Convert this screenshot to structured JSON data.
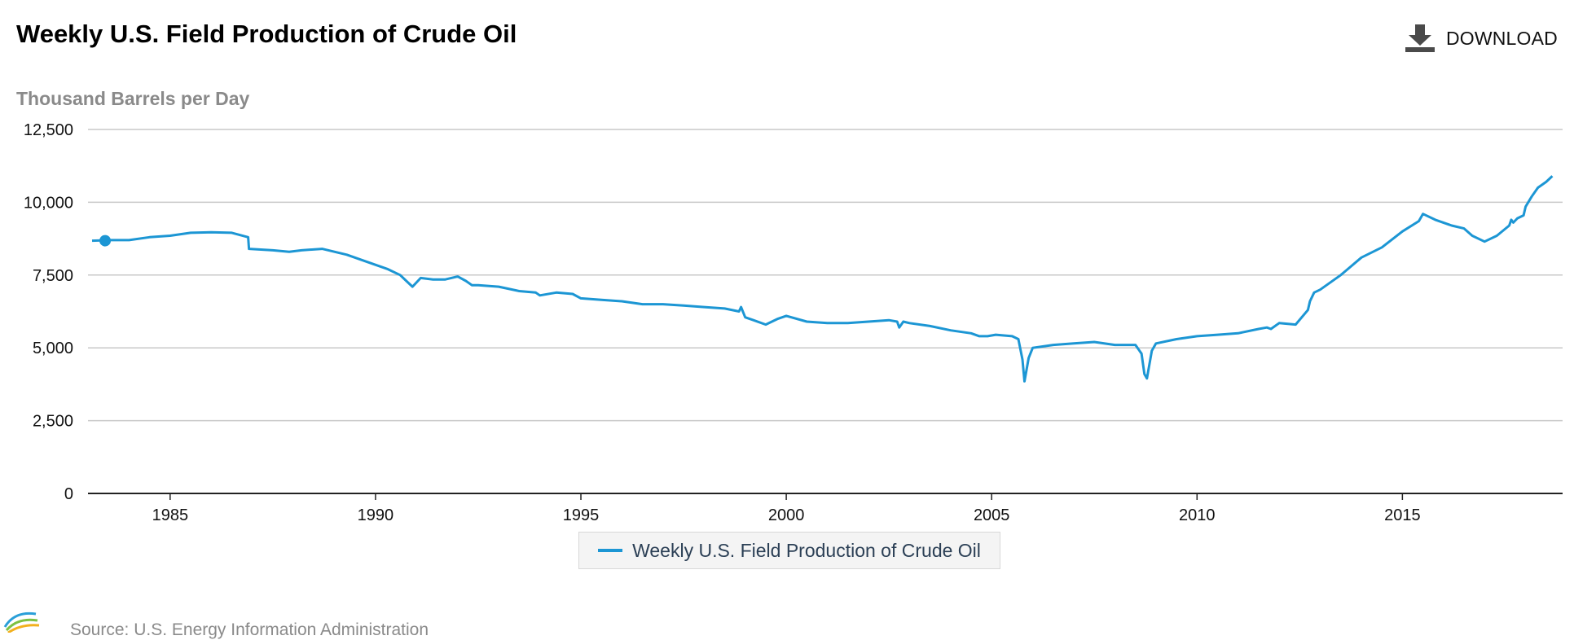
{
  "header": {
    "title": "Weekly U.S. Field Production of Crude Oil",
    "download_label": "DOWNLOAD",
    "download_icon": "download-icon"
  },
  "footer": {
    "source_text": "Source: U.S. Energy Information Administration",
    "logo_text": "eia"
  },
  "chart_data": {
    "type": "line",
    "title": "Weekly U.S. Field Production of Crude Oil",
    "ylabel": "Thousand Barrels per Day",
    "xlabel": "",
    "xlim": [
      1983.0,
      2018.9
    ],
    "ylim": [
      0,
      12500
    ],
    "yticks": [
      0,
      2500,
      5000,
      7500,
      10000,
      12500
    ],
    "ytick_labels": [
      "0",
      "2,500",
      "5,000",
      "7,500",
      "10,000",
      "12,500"
    ],
    "xticks": [
      1985,
      1990,
      1995,
      2000,
      2005,
      2010,
      2015
    ],
    "xtick_labels": [
      "1985",
      "1990",
      "1995",
      "2000",
      "2005",
      "2010",
      "2015"
    ],
    "grid": true,
    "legend": "bottom-center",
    "colors": {
      "series": "#1c96d4",
      "grid": "#c8c8c8",
      "axis": "#222222"
    },
    "series": [
      {
        "name": "Weekly U.S. Field Production of Crude Oil",
        "x": [
          1983.1,
          1983.5,
          1984.0,
          1984.5,
          1985.0,
          1985.5,
          1986.0,
          1986.5,
          1986.9,
          1986.92,
          1987.5,
          1987.9,
          1988.2,
          1988.7,
          1989.3,
          1989.8,
          1990.3,
          1990.6,
          1990.75,
          1990.9,
          1991.1,
          1991.4,
          1991.7,
          1992.0,
          1992.2,
          1992.35,
          1992.5,
          1993.0,
          1993.5,
          1993.9,
          1994.0,
          1994.4,
          1994.8,
          1995.0,
          1995.5,
          1996.0,
          1996.5,
          1997.0,
          1997.5,
          1998.0,
          1998.5,
          1998.85,
          1998.9,
          1999.0,
          1999.2,
          1999.5,
          1999.8,
          2000.0,
          2000.5,
          2001.0,
          2001.5,
          2002.0,
          2002.5,
          2002.7,
          2002.75,
          2002.85,
          2003.0,
          2003.5,
          2004.0,
          2004.5,
          2004.7,
          2004.8,
          2004.9,
          2005.1,
          2005.5,
          2005.65,
          2005.75,
          2005.8,
          2005.9,
          2006.0,
          2006.5,
          2007.0,
          2007.5,
          2008.0,
          2008.5,
          2008.65,
          2008.72,
          2008.78,
          2008.9,
          2009.0,
          2009.5,
          2010.0,
          2010.5,
          2011.0,
          2011.5,
          2011.7,
          2011.8,
          2012.0,
          2012.4,
          2012.7,
          2012.75,
          2012.85,
          2013.0,
          2013.5,
          2014.0,
          2014.5,
          2015.0,
          2015.4,
          2015.5,
          2015.8,
          2016.2,
          2016.5,
          2016.7,
          2017.0,
          2017.3,
          2017.6,
          2017.65,
          2017.7,
          2017.8,
          2017.95,
          2018.0,
          2018.15,
          2018.3,
          2018.5,
          2018.65
        ],
        "values": [
          8680,
          8700,
          8700,
          8800,
          8850,
          8950,
          8970,
          8950,
          8800,
          8400,
          8350,
          8300,
          8350,
          8400,
          8200,
          7950,
          7700,
          7500,
          7300,
          7100,
          7400,
          7350,
          7350,
          7450,
          7300,
          7150,
          7150,
          7100,
          6950,
          6900,
          6800,
          6900,
          6850,
          6700,
          6650,
          6600,
          6500,
          6500,
          6450,
          6400,
          6350,
          6250,
          6400,
          6050,
          5950,
          5800,
          6000,
          6100,
          5900,
          5850,
          5850,
          5900,
          5950,
          5900,
          5700,
          5900,
          5850,
          5750,
          5600,
          5500,
          5400,
          5400,
          5400,
          5450,
          5400,
          5300,
          4600,
          3850,
          4650,
          5000,
          5100,
          5150,
          5200,
          5100,
          5100,
          4800,
          4100,
          3950,
          4900,
          5150,
          5300,
          5400,
          5450,
          5500,
          5650,
          5700,
          5650,
          5850,
          5800,
          6300,
          6600,
          6900,
          7000,
          7500,
          8100,
          8450,
          9000,
          9350,
          9600,
          9400,
          9200,
          9100,
          8850,
          8650,
          8850,
          9200,
          9400,
          9300,
          9450,
          9550,
          9850,
          10200,
          10500,
          10700,
          10900
        ]
      }
    ]
  }
}
